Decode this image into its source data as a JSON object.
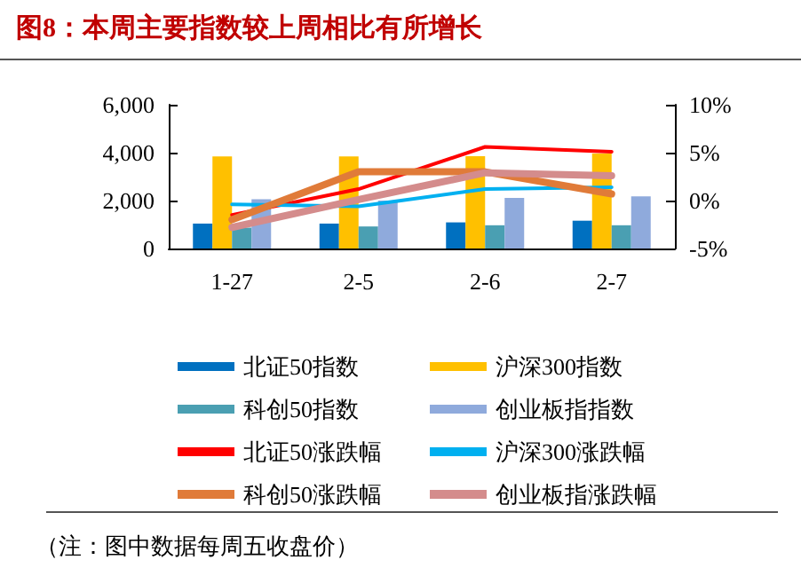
{
  "chart_data": {
    "type": "bar",
    "title": "图8：本周主要指数较上周相比有所增长",
    "categories": [
      "1-27",
      "2-5",
      "2-6",
      "2-7"
    ],
    "series": [
      {
        "name": "北证50指数",
        "color": "#0070c0",
        "values": [
          1040,
          1040,
          1090,
          1160
        ]
      },
      {
        "name": "沪深300指数",
        "color": "#ffc000",
        "values": [
          3840,
          3840,
          3850,
          3960
        ]
      },
      {
        "name": "科创50指数",
        "color": "#4a9fb2",
        "values": [
          870,
          920,
          970,
          970
        ]
      },
      {
        "name": "创业板指指数",
        "color": "#8faadc",
        "values": [
          2060,
          2000,
          2110,
          2180
        ]
      },
      {
        "name": "北证50涨跌幅",
        "type": "line",
        "axis": "y2",
        "color": "#ff0000",
        "values": [
          -1.5,
          1.2,
          5.6,
          5.1
        ]
      },
      {
        "name": "沪深300涨跌幅",
        "type": "line",
        "axis": "y2",
        "color": "#00b0f0",
        "values": [
          -0.4,
          -0.6,
          1.2,
          1.4
        ]
      },
      {
        "name": "科创50涨跌幅",
        "type": "line",
        "axis": "y2",
        "color": "#e07b39",
        "values": [
          -2.0,
          3.0,
          3.0,
          0.7
        ]
      },
      {
        "name": "创业板指涨跌幅",
        "type": "line",
        "axis": "y2",
        "color": "#d48c8c",
        "values": [
          -2.8,
          0.1,
          2.9,
          2.6
        ]
      }
    ],
    "ylim": [
      0,
      6000
    ],
    "yticks": [
      0,
      {
        "value": 2000,
        "label": "2,000"
      },
      {
        "value": 4000,
        "label": "4,000"
      },
      {
        "value": 6000,
        "label": "6,000"
      }
    ],
    "y2lim": [
      -5,
      10
    ],
    "y2ticks": [
      {
        "value": -5,
        "label": "-5%"
      },
      {
        "value": 0,
        "label": "0%"
      },
      {
        "value": 5,
        "label": "5%"
      },
      {
        "value": 10,
        "label": "10%"
      }
    ],
    "grid": false,
    "legend": "bottom",
    "marker": "none",
    "line_style": "solid",
    "annotations": [
      "（注：图中数据每周五收盘价）"
    ]
  }
}
